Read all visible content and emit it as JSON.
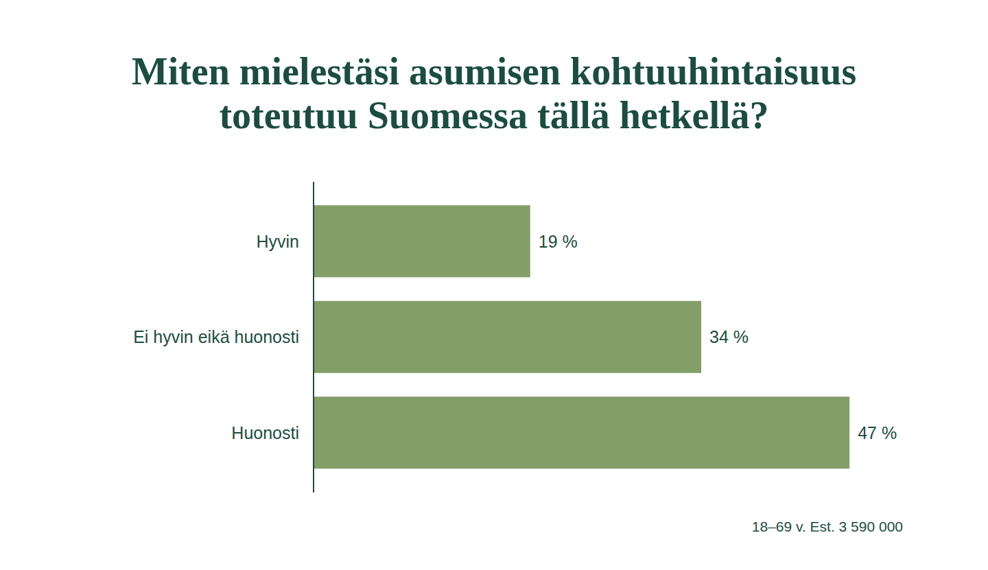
{
  "chart_data": {
    "type": "bar",
    "orientation": "horizontal",
    "title": "Miten mielestäsi asumisen kohtuuhintaisuus toteutuu Suomessa tällä hetkellä?",
    "categories": [
      "Hyvin",
      "Ei hyvin eikä huonosti",
      "Huonosti"
    ],
    "values": [
      19,
      34,
      47
    ],
    "value_labels": [
      "19 %",
      "34 %",
      "47 %"
    ],
    "color": "#849e69",
    "xlim": [
      0,
      50
    ],
    "tick_labels": false,
    "data_labels": true,
    "grid": false,
    "annotations": [
      "18–69 v. Est. 3 590 000"
    ]
  }
}
